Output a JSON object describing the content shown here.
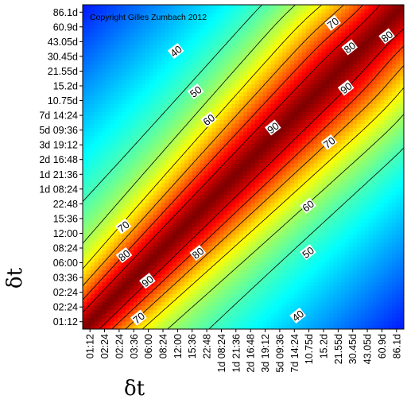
{
  "chart_data": {
    "type": "heatmap",
    "title": "",
    "copyright": "Copyright Gilles Zumbach 2012",
    "xlabel": "δt",
    "ylabel": "δt",
    "x_ticks": [
      "01:12",
      "02:24",
      "02:24",
      "03:36",
      "06:00",
      "08:24",
      "12:00",
      "15:36",
      "22:48",
      "1d 08:24",
      "1d 21:36",
      "2d 16:48",
      "3d 19:12",
      "5d 09:36",
      "7d 14:24",
      "10.75d",
      "15.2d",
      "21.55d",
      "30.45d",
      "43.05d",
      "60.9d",
      "86.1d"
    ],
    "y_ticks": [
      "01:12",
      "02:24",
      "02:24",
      "03:36",
      "06:00",
      "08:24",
      "12:00",
      "15:36",
      "22:48",
      "1d 08:24",
      "1d 21:36",
      "2d 16:48",
      "3d 19:12",
      "5d 09:36",
      "7d 14:24",
      "10.75d",
      "15.2d",
      "21.55d",
      "30.45d",
      "43.05d",
      "60.9d",
      "86.1d"
    ],
    "contour_levels": [
      40,
      50,
      60,
      70,
      80,
      90
    ],
    "contour_labels": [
      {
        "text": "40",
        "x": 6.4,
        "y": 18.85
      },
      {
        "text": "50",
        "x": 7.75,
        "y": 16.1
      },
      {
        "text": "60",
        "x": 8.65,
        "y": 14.2
      },
      {
        "text": "70",
        "x": 17.15,
        "y": 20.75
      },
      {
        "text": "80",
        "x": 18.3,
        "y": 19.1
      },
      {
        "text": "80",
        "x": 20.85,
        "y": 19.85
      },
      {
        "text": "90",
        "x": 13.05,
        "y": 13.65
      },
      {
        "text": "90",
        "x": 18.05,
        "y": 16.35
      },
      {
        "text": "70",
        "x": 16.9,
        "y": 12.65
      },
      {
        "text": "70",
        "x": 2.8,
        "y": 6.95
      },
      {
        "text": "80",
        "x": 2.85,
        "y": 5.0
      },
      {
        "text": "90",
        "x": 4.45,
        "y": 3.25
      },
      {
        "text": "70",
        "x": 3.85,
        "y": 0.75
      },
      {
        "text": "60",
        "x": 15.45,
        "y": 8.35
      },
      {
        "text": "80",
        "x": 7.9,
        "y": 5.15
      },
      {
        "text": "50",
        "x": 15.45,
        "y": 5.2
      },
      {
        "text": "40",
        "x": 14.75,
        "y": 0.9
      }
    ],
    "colormap": "jet",
    "value_range": [
      0,
      100
    ],
    "legend": "none",
    "grid": false
  }
}
